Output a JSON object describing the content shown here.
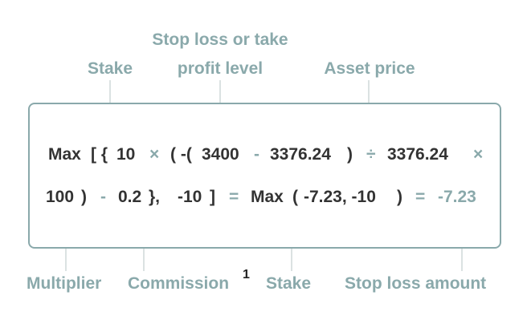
{
  "labels": {
    "stake_top": "Stake",
    "sl_tp_line1": "Stop loss or take",
    "sl_tp_line2": "profit level",
    "asset_price": "Asset price",
    "multiplier": "Multiplier",
    "commission": "Commission",
    "footnote": "1",
    "stake_bottom": "Stake",
    "stop_loss_amount": "Stop loss amount"
  },
  "formula": {
    "line1": {
      "max": "Max",
      "open_brackets": "[ {",
      "stake": "10",
      "times1": "×",
      "open_paren": "( -(",
      "level": "3400",
      "minus1": "-",
      "price1": "3376.24",
      "close_paren": ")",
      "divide": "÷",
      "price2": "3376.24",
      "times2": "×"
    },
    "line2": {
      "multiplier": "100",
      "close_paren": ")",
      "minus": "-",
      "commission": "0.2",
      "close_brace": "},",
      "neg_stake": "-10",
      "close_bracket": "]",
      "equals1": "=",
      "max2": "Max",
      "open_paren2": "(",
      "args": "-7.23, -10",
      "close_paren2": ")",
      "equals2": "=",
      "result": "-7.23"
    }
  }
}
